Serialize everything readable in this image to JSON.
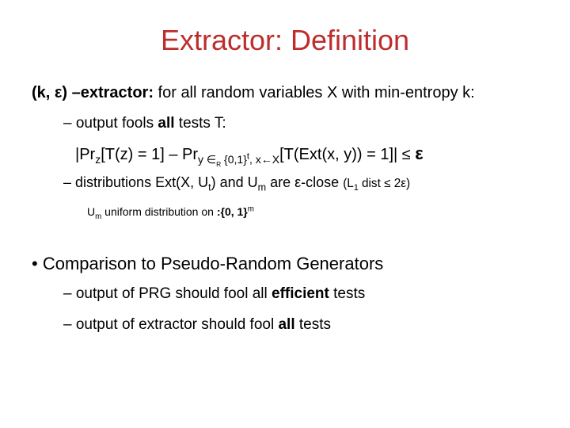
{
  "title_color": "#bd2d2d",
  "title": "Extractor: Definition",
  "def": {
    "prefix": "(k, ε) –extractor:",
    "rest": " for all random variables X with min-entropy k:"
  },
  "sub1": {
    "dash": "–  ",
    "t1": "output fools ",
    "bold": "all",
    "t2": " tests T:"
  },
  "formula": {
    "t1": "|Pr",
    "s1": "z",
    "t2": "[T(z) = 1] – Pr",
    "s2": "y ∈",
    "s2b": "R",
    "s2c": " {0,1}",
    "s2d": "t",
    "s2e": ", x←X",
    "t3": "[T(Ext(x, y)) = 1]| ≤ ",
    "eps": "ε"
  },
  "dist": {
    "dash": "–  ",
    "t1": "distributions ",
    "ext": "Ext(X, U",
    "extsub": "t",
    "ext2": ")",
    "and": " and ",
    "um": "U",
    "umsub": "m",
    "t2": "  are ε-close  ",
    "paren": "(L",
    "l1sub": "1",
    "paren2": " dist ≤ 2ε)"
  },
  "umdef": {
    "um": "U",
    "umsub": "m",
    "t1": " uniform distribution on ",
    "set": ":{0, 1}",
    "setm": "m"
  },
  "comparison": {
    "bullet": "•   ",
    "text": "Comparison to Pseudo-Random Generators"
  },
  "prg1": {
    "dash": "–  ",
    "t1": "output of PRG should fool all ",
    "bold": "efficient",
    "t2": " tests"
  },
  "prg2": {
    "dash": "–  ",
    "t1": "output of extractor should fool ",
    "bold": "all",
    "t2": " tests"
  }
}
